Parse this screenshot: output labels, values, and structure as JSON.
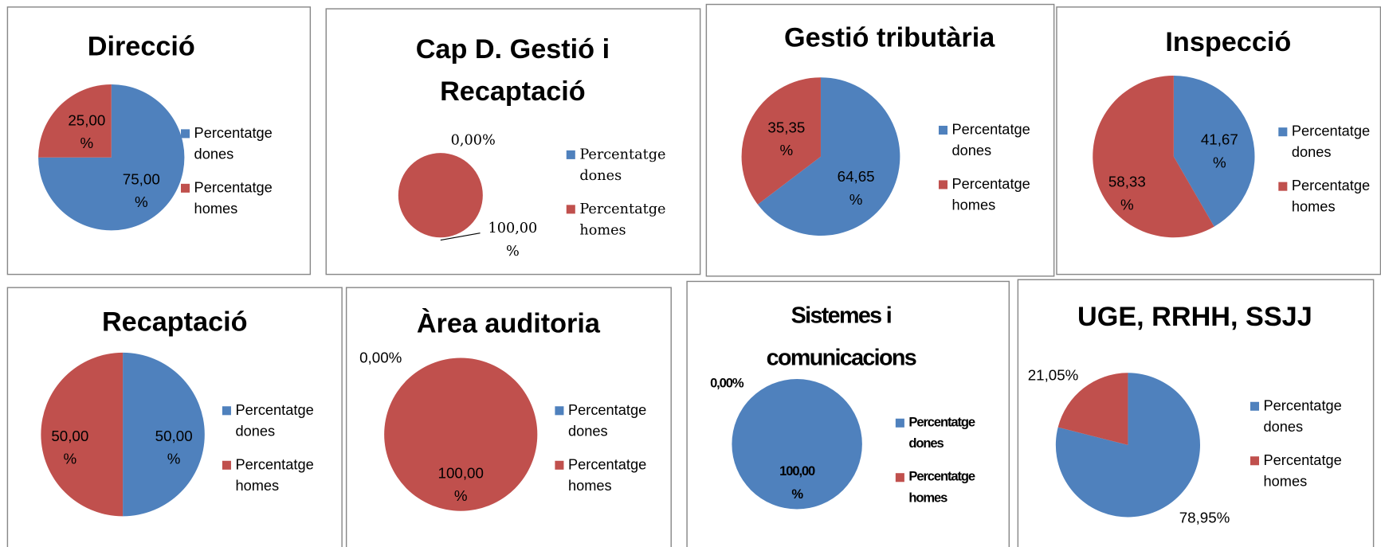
{
  "chart_data": [
    {
      "type": "pie",
      "title": "Direcció",
      "categories": [
        "Percentatge dones",
        "Percentatge homes"
      ],
      "values": [
        75,
        25
      ],
      "value_labels": [
        "75,00 %",
        "25,00 %"
      ],
      "colors": [
        "#4f81bd",
        "#c0504d"
      ]
    },
    {
      "type": "pie",
      "title": "Cap D. Gestió i Recaptació",
      "categories": [
        "Percentatge dones",
        "Percentatge homes"
      ],
      "values": [
        0,
        100
      ],
      "value_labels": [
        "0,00%",
        "100,00 %"
      ],
      "colors": [
        "#4f81bd",
        "#c0504d"
      ]
    },
    {
      "type": "pie",
      "title": "Gestió tributària",
      "categories": [
        "Percentatge dones",
        "Percentatge homes"
      ],
      "values": [
        64.65,
        35.35
      ],
      "value_labels": [
        "64,65 %",
        "35,35 %"
      ],
      "colors": [
        "#4f81bd",
        "#c0504d"
      ]
    },
    {
      "type": "pie",
      "title": "Inspecció",
      "categories": [
        "Percentatge dones",
        "Percentatge homes"
      ],
      "values": [
        41.67,
        58.33
      ],
      "value_labels": [
        "41,67 %",
        "58,33 %"
      ],
      "colors": [
        "#4f81bd",
        "#c0504d"
      ]
    },
    {
      "type": "pie",
      "title": "Recaptació",
      "categories": [
        "Percentatge dones",
        "Percentatge homes"
      ],
      "values": [
        50,
        50
      ],
      "value_labels": [
        "50,00 %",
        "50,00 %"
      ],
      "colors": [
        "#4f81bd",
        "#c0504d"
      ]
    },
    {
      "type": "pie",
      "title": "Àrea auditoria",
      "categories": [
        "Percentatge dones",
        "Percentatge homes"
      ],
      "values": [
        0,
        100
      ],
      "value_labels": [
        "0,00%",
        "100,00 %"
      ],
      "colors": [
        "#4f81bd",
        "#c0504d"
      ]
    },
    {
      "type": "pie",
      "title": "Sistemes i comunicacions",
      "categories": [
        "Percentatge dones",
        "Percentatge homes"
      ],
      "values": [
        100,
        0
      ],
      "value_labels": [
        "100,00 %",
        "0,00%"
      ],
      "colors": [
        "#4f81bd",
        "#c0504d"
      ]
    },
    {
      "type": "pie",
      "title": "UGE, RRHH, SSJJ",
      "categories": [
        "Percentatge dones",
        "Percentatge homes"
      ],
      "values": [
        78.95,
        21.05
      ],
      "value_labels": [
        "78,95%",
        "21,05%"
      ],
      "colors": [
        "#4f81bd",
        "#c0504d"
      ]
    }
  ]
}
